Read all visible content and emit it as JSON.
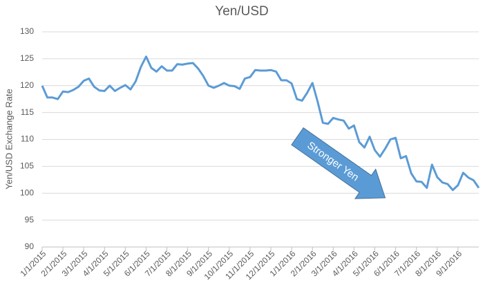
{
  "chart_data": {
    "type": "line",
    "title": "Yen/USD",
    "y_label": "Yen/USD Exchange Rate",
    "annotation": "Stronger Yen",
    "categories": [
      "1/1/2015",
      null,
      null,
      null,
      "2/1/2015",
      null,
      null,
      null,
      "3/1/2015",
      null,
      null,
      null,
      "4/1/2015",
      null,
      null,
      null,
      "5/1/2015",
      null,
      null,
      null,
      "6/1/2015",
      null,
      null,
      null,
      "7/1/2015",
      null,
      null,
      null,
      "8/1/2015",
      null,
      null,
      null,
      "9/1/2015",
      null,
      null,
      null,
      "10/1/2015",
      null,
      null,
      null,
      "11/1/2015",
      null,
      null,
      null,
      "12/1/2015",
      null,
      null,
      null,
      "1/1/2016",
      null,
      null,
      null,
      "2/1/2016",
      null,
      null,
      null,
      "3/1/2016",
      null,
      null,
      null,
      "4/1/2016",
      null,
      null,
      null,
      "5/1/2016",
      null,
      null,
      null,
      "6/1/2016",
      null,
      null,
      null,
      "7/1/2016",
      null,
      null,
      null,
      "8/1/2016",
      null,
      null,
      null,
      "9/1/2016",
      null,
      null,
      null,
      null
    ],
    "series": [
      {
        "name": "Yen/USD",
        "color": "#5b9bd5",
        "values": [
          120,
          117.8,
          117.8,
          117.5,
          118.9,
          118.8,
          119.2,
          119.8,
          120.9,
          121.3,
          119.8,
          119.1,
          119,
          120,
          119,
          119.6,
          120.1,
          119.3,
          120.8,
          123.5,
          125.4,
          123.3,
          122.6,
          123.6,
          122.8,
          122.8,
          124,
          123.9,
          124.1,
          124.2,
          123.2,
          121.8,
          120,
          119.6,
          120,
          120.5,
          120,
          119.9,
          119.4,
          121.3,
          121.6,
          122.9,
          122.8,
          122.8,
          122.9,
          122.6,
          121,
          121,
          120.4,
          117.5,
          117.2,
          118.7,
          120.5,
          117,
          113.1,
          112.9,
          114,
          113.7,
          113.5,
          112,
          112.6,
          109.5,
          108.5,
          110.5,
          108,
          106.8,
          108.3,
          110,
          110.3,
          106.5,
          106.9,
          103.7,
          102.2,
          102.1,
          101,
          105.3,
          103,
          102,
          101.7,
          100.6,
          101.5,
          103.8,
          102.9,
          102.4,
          101
        ]
      }
    ],
    "ylim": [
      90,
      130
    ],
    "yticks": [
      90,
      95,
      100,
      105,
      110,
      115,
      120,
      125,
      130
    ],
    "grid": true
  }
}
